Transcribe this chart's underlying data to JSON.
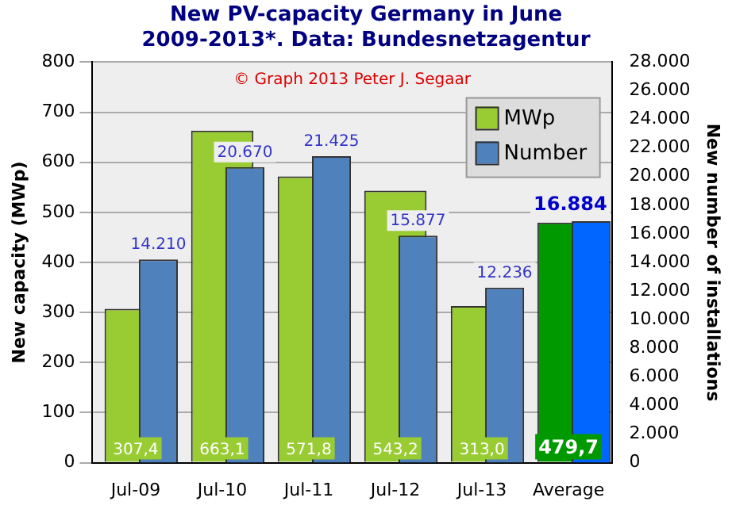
{
  "chart_data": {
    "type": "bar",
    "title": "New PV-capacity Germany in June\n2009-2013*. Data: Bundesnetzagentur",
    "ylabel": "New capacity (MWp)",
    "y2label": "New number of installations",
    "annotations": [
      "© Graph 2013 Peter J. Segaar"
    ],
    "categories": [
      "Jul-09",
      "Jul-10",
      "Jul-11",
      "Jul-12",
      "Jul-13",
      "Average"
    ],
    "series": [
      {
        "name": "MWp",
        "color": "#99cc33",
        "colors": [
          "#99cc33",
          "#99cc33",
          "#99cc33",
          "#99cc33",
          "#99cc33",
          "#009900"
        ],
        "values": [
          307.4,
          663.1,
          571.8,
          543.2,
          313.0,
          479.7
        ],
        "value_labels": [
          "307,4",
          "663,1",
          "571,8",
          "543,2",
          "313,0",
          "479,7"
        ]
      },
      {
        "name": "Number",
        "color": "#4f81bd",
        "colors": [
          "#4f81bd",
          "#4f81bd",
          "#4f81bd",
          "#4f81bd",
          "#4f81bd",
          "#0066ff"
        ],
        "axis": "y2",
        "values": [
          14210,
          20670,
          21425,
          15877,
          12236,
          16884
        ],
        "value_labels": [
          "14.210",
          "20.670",
          "21.425",
          "15.877",
          "12.236",
          "16.884"
        ]
      }
    ],
    "ylim": [
      0,
      800
    ],
    "yticks": [
      0,
      100,
      200,
      300,
      400,
      500,
      600,
      700,
      800
    ],
    "y2lim": [
      0,
      28000
    ],
    "y2ticks": [
      {
        "value": 0,
        "label": "0"
      },
      {
        "value": 2000,
        "label": "2.000"
      },
      {
        "value": 4000,
        "label": "4.000"
      },
      {
        "value": 6000,
        "label": "6.000"
      },
      {
        "value": 8000,
        "label": "8.000"
      },
      {
        "value": 10000,
        "label": "10.000"
      },
      {
        "value": 12000,
        "label": "12.000"
      },
      {
        "value": 14000,
        "label": "14.000"
      },
      {
        "value": 16000,
        "label": "16.000"
      },
      {
        "value": 18000,
        "label": "18.000"
      },
      {
        "value": 20000,
        "label": "20.000"
      },
      {
        "value": 22000,
        "label": "22.000"
      },
      {
        "value": 24000,
        "label": "24.000"
      },
      {
        "value": 26000,
        "label": "26.000"
      },
      {
        "value": 28000,
        "label": "28.000"
      }
    ],
    "grid": "y",
    "legend": "top right"
  }
}
